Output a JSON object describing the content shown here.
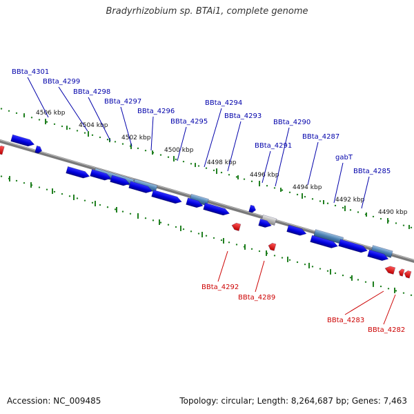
{
  "title": "Bradyrhizobium sp. BTAi1, complete genome",
  "accession": "Accession: NC_009485",
  "topology": "Topology: circular; Length: 8,264,687 bp; Genes: 7,463",
  "colors": {
    "forward_gene": "#0000dd",
    "reverse_gene": "#ee0000",
    "rna_gene": "#4a7fb0",
    "pseudo_gene": "#b5b5b5",
    "backbone": "#7a7a7a",
    "ruler": "#1f7f1f",
    "forward_label": "#0000aa",
    "reverse_label": "#cc0000"
  },
  "ruler_ticks": [
    "4506 kbp",
    "4504 kbp",
    "4502 kbp",
    "4500 kbp",
    "4498 kbp",
    "4496 kbp",
    "4494 kbp",
    "4492 kbp",
    "4490 kbp"
  ],
  "forward_labels": [
    "BBta_4301",
    "BBta_4299",
    "BBta_4298",
    "BBta_4297",
    "BBta_4296",
    "BBta_4295",
    "BBta_4294",
    "BBta_4293",
    "BBta_4290",
    "BBta_4291",
    "BBta_4287",
    "gabT",
    "BBta_4285"
  ],
  "reverse_labels": [
    "BBta_4292",
    "BBta_4289",
    "BBta_4283",
    "BBta_4282"
  ]
}
